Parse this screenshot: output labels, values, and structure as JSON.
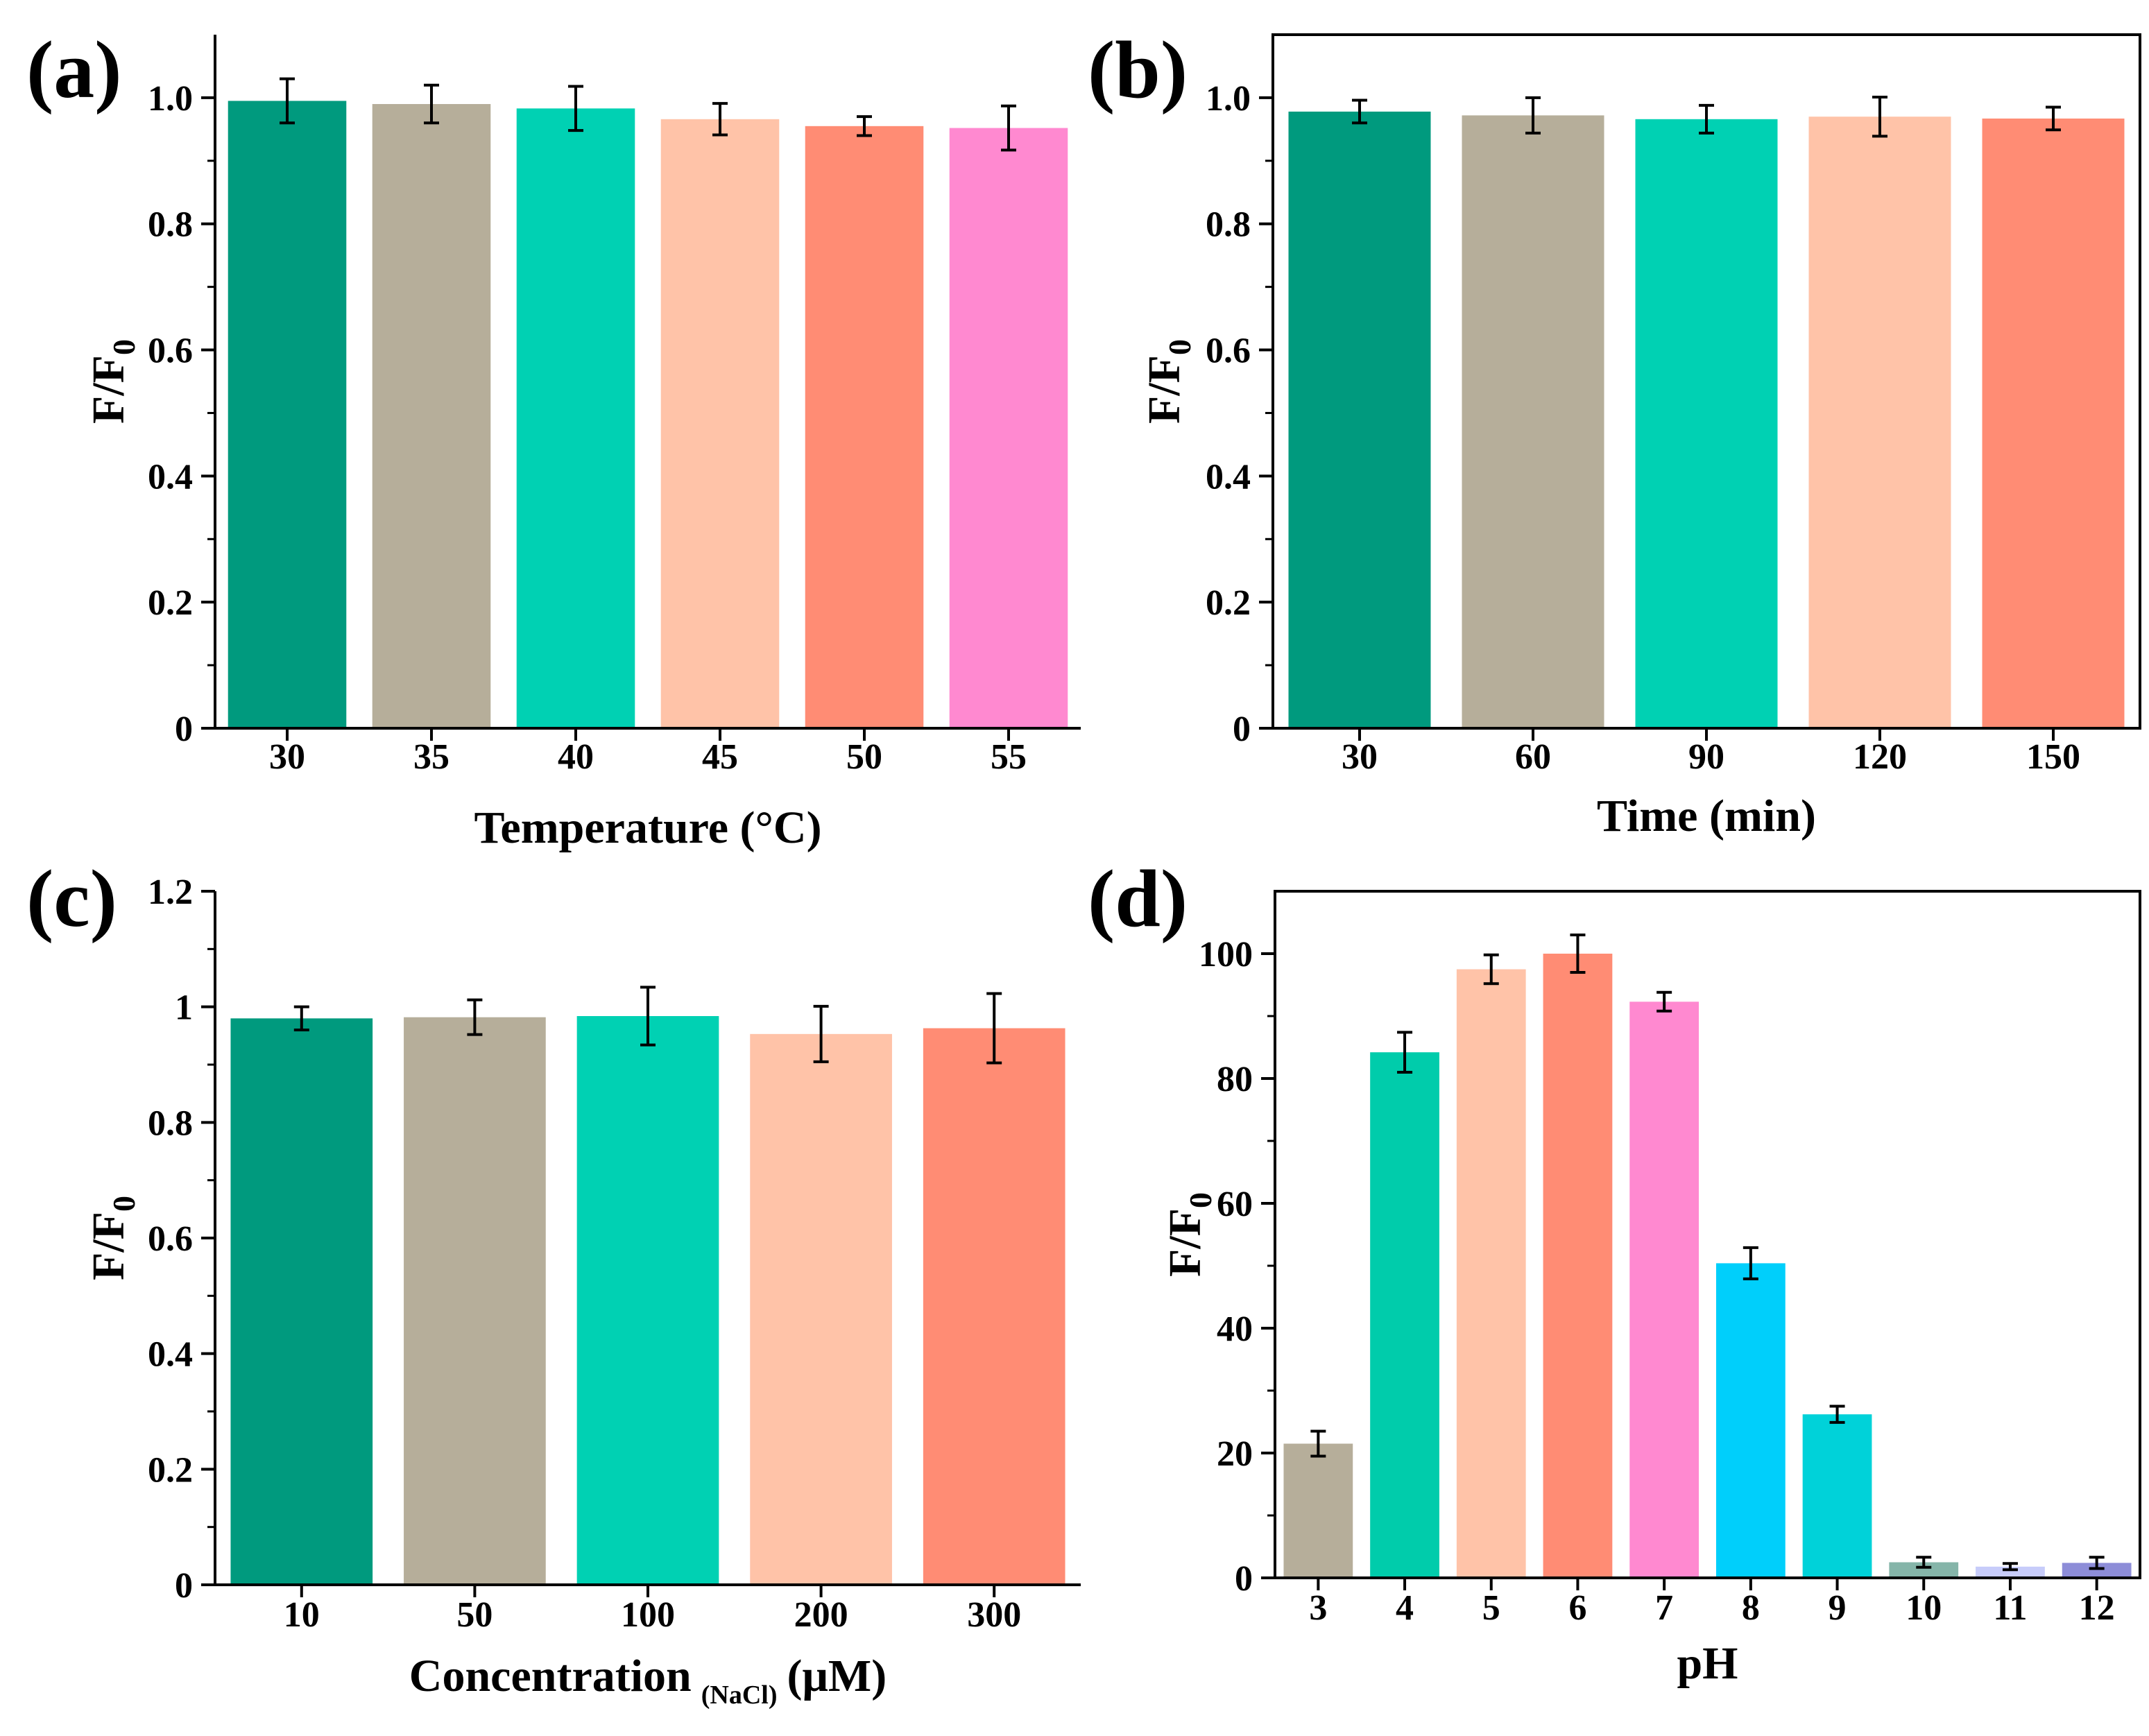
{
  "chart_data": [
    {
      "id": "a",
      "type": "bar",
      "panel_label": "(a)",
      "categories": [
        "30",
        "35",
        "40",
        "45",
        "50",
        "55"
      ],
      "values": [
        0.995,
        0.99,
        0.983,
        0.966,
        0.955,
        0.952
      ],
      "errors": [
        0.035,
        0.03,
        0.035,
        0.025,
        0.015,
        0.035
      ],
      "colors": [
        "#009A7E",
        "#B6AE9A",
        "#00D1B3",
        "#FFC3A8",
        "#FF8C74",
        "#FF89D0"
      ],
      "xlabel": "Temperature (°C)",
      "ylabel": {
        "main": "F/F",
        "sub": "0"
      },
      "ylim": [
        0,
        1.1
      ],
      "yticks": [
        0,
        0.2,
        0.4,
        0.6,
        0.8,
        1.0
      ],
      "ytick_labels": [
        "0",
        "0.2",
        "0.4",
        "0.6",
        "0.8",
        "1.0"
      ]
    },
    {
      "id": "b",
      "type": "bar",
      "panel_label": "(b)",
      "categories": [
        "30",
        "60",
        "90",
        "120",
        "150"
      ],
      "values": [
        0.978,
        0.972,
        0.966,
        0.97,
        0.967
      ],
      "errors": [
        0.018,
        0.028,
        0.022,
        0.031,
        0.018
      ],
      "colors": [
        "#009A7E",
        "#B6AE9A",
        "#00D1B3",
        "#FFC3A8",
        "#FF8C74"
      ],
      "xlabel": "Time (min)",
      "ylabel": {
        "main": "F/F",
        "sub": "0"
      },
      "ylim": [
        0,
        1.1
      ],
      "yticks": [
        0,
        0.2,
        0.4,
        0.6,
        0.8,
        1.0
      ],
      "ytick_labels": [
        "0",
        "0.2",
        "0.4",
        "0.6",
        "0.8",
        "1.0"
      ]
    },
    {
      "id": "c",
      "type": "bar",
      "panel_label": "(c)",
      "categories": [
        "10",
        "50",
        "100",
        "200",
        "300"
      ],
      "values": [
        0.98,
        0.982,
        0.984,
        0.953,
        0.963
      ],
      "errors": [
        0.02,
        0.03,
        0.05,
        0.048,
        0.06
      ],
      "colors": [
        "#009A7E",
        "#B6AE9A",
        "#00D1B3",
        "#FFC3A8",
        "#FF8C74"
      ],
      "xlabel": {
        "main": "Concentration",
        "sub": "(NaCl)",
        "tail": "(μM)"
      },
      "ylabel": {
        "main": "F/F",
        "sub": "0"
      },
      "ylim": [
        0,
        1.2
      ],
      "yticks": [
        0,
        0.2,
        0.4,
        0.6,
        0.8,
        1.0,
        1.2
      ],
      "ytick_labels": [
        "0",
        "0.2",
        "0.4",
        "0.6",
        "0.8",
        "1",
        "1.2"
      ]
    },
    {
      "id": "d",
      "type": "bar",
      "panel_label": "(d)",
      "categories": [
        "3",
        "4",
        "5",
        "6",
        "7",
        "8",
        "9",
        "10",
        "11",
        "12"
      ],
      "values": [
        21.5,
        84.2,
        97.5,
        100.0,
        92.3,
        50.4,
        26.2,
        2.5,
        1.8,
        2.4
      ],
      "errors": [
        2.0,
        3.2,
        2.3,
        3.0,
        1.5,
        2.5,
        1.3,
        0.8,
        0.5,
        0.9
      ],
      "colors": [
        "#B6AE9A",
        "#00CCAB",
        "#FFC3A8",
        "#FF8C74",
        "#FF89D0",
        "#00CFFB",
        "#00D2D9",
        "#85B5A9",
        "#C7CCFA",
        "#8D8DD8"
      ],
      "xlabel": "pH",
      "ylabel": {
        "main": "F/F",
        "sub": "0"
      },
      "ylim": [
        0,
        110
      ],
      "yticks": [
        0,
        20,
        40,
        60,
        80,
        100
      ],
      "ytick_labels": [
        "0",
        "20",
        "40",
        "60",
        "80",
        "100"
      ]
    }
  ]
}
